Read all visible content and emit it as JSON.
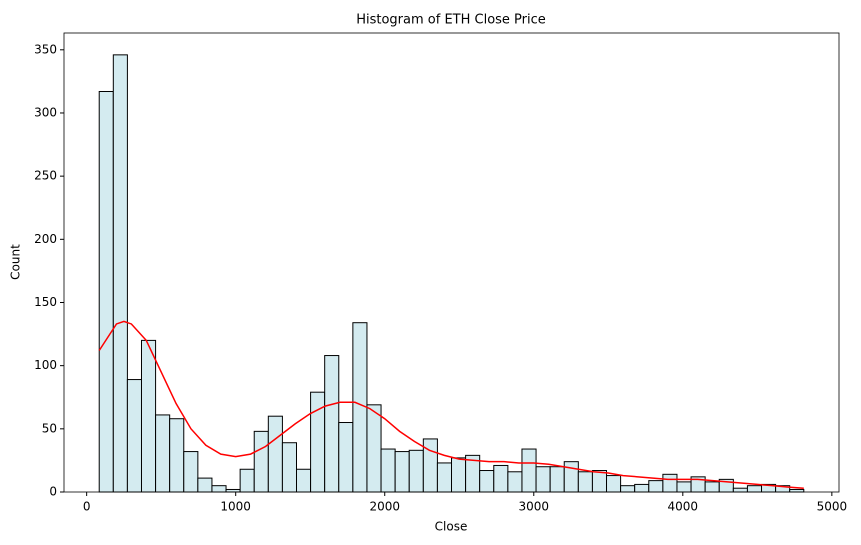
{
  "chart_data": {
    "type": "histogram",
    "title": "Histogram of ETH Close Price",
    "x_label": "Close",
    "y_label": "Count",
    "bins": [
      84.3,
      178.85,
      273.4,
      367.95,
      462.5,
      557.05,
      651.6,
      746.15,
      840.7,
      935.25,
      1029.8,
      1124.35,
      1218.9,
      1313.45,
      1408,
      1502.55,
      1597.1,
      1691.65,
      1786.2,
      1880.75,
      1975.3,
      2069.85,
      2164.4,
      2258.95,
      2353.5,
      2448.05,
      2542.6,
      2637.15,
      2731.7,
      2826.25,
      2920.8,
      3015.35,
      3109.9,
      3204.45,
      3299,
      3393.55,
      3488.1,
      3582.65,
      3677.2,
      3771.75,
      3866.3,
      3960.85,
      4055.4,
      4149.95,
      4244.5,
      4339.05,
      4433.6,
      4528.15,
      4622.7,
      4717.25,
      4811.8
    ],
    "values": [
      317,
      346,
      89,
      120,
      61,
      58,
      32,
      11,
      5,
      2,
      18,
      48,
      60,
      39,
      18,
      79,
      108,
      55,
      134,
      69,
      34,
      32,
      33,
      42,
      23,
      27,
      29,
      17,
      21,
      16,
      34,
      20,
      20,
      24,
      16,
      17,
      13,
      5,
      6,
      9,
      14,
      8,
      12,
      8,
      10,
      3,
      5,
      6,
      5,
      2
    ],
    "color": "#d4ebf0",
    "edgecolor": "#000000",
    "kde": {
      "color": "#ff0000",
      "x": [
        84.3,
        200,
        250,
        300,
        400,
        500,
        600,
        700,
        800,
        900,
        1000,
        1100,
        1200,
        1300,
        1400,
        1500,
        1600,
        1700,
        1800,
        1900,
        2000,
        2100,
        2200,
        2300,
        2400,
        2500,
        2600,
        2700,
        2800,
        2900,
        3000,
        3100,
        3200,
        3300,
        3400,
        3500,
        3600,
        3700,
        3800,
        3900,
        4000,
        4100,
        4200,
        4300,
        4400,
        4500,
        4600,
        4700,
        4811.8
      ],
      "values": [
        112,
        133,
        135,
        133,
        120,
        95,
        70,
        50,
        37,
        30,
        28,
        30,
        36,
        45,
        54,
        62,
        68,
        71,
        71,
        66,
        58,
        48,
        40,
        33,
        29,
        26,
        25,
        24,
        24,
        23,
        23,
        22,
        20,
        18,
        16,
        15,
        13,
        12,
        11,
        10,
        10,
        10,
        9,
        8,
        7,
        6,
        5,
        4,
        3
      ]
    },
    "xlim": [
      -152,
      5048
    ],
    "ylim": [
      0,
      363.3
    ],
    "xticks": [
      0,
      1000,
      2000,
      3000,
      4000,
      5000
    ],
    "yticks": [
      0,
      50,
      100,
      150,
      200,
      250,
      300,
      350
    ]
  }
}
